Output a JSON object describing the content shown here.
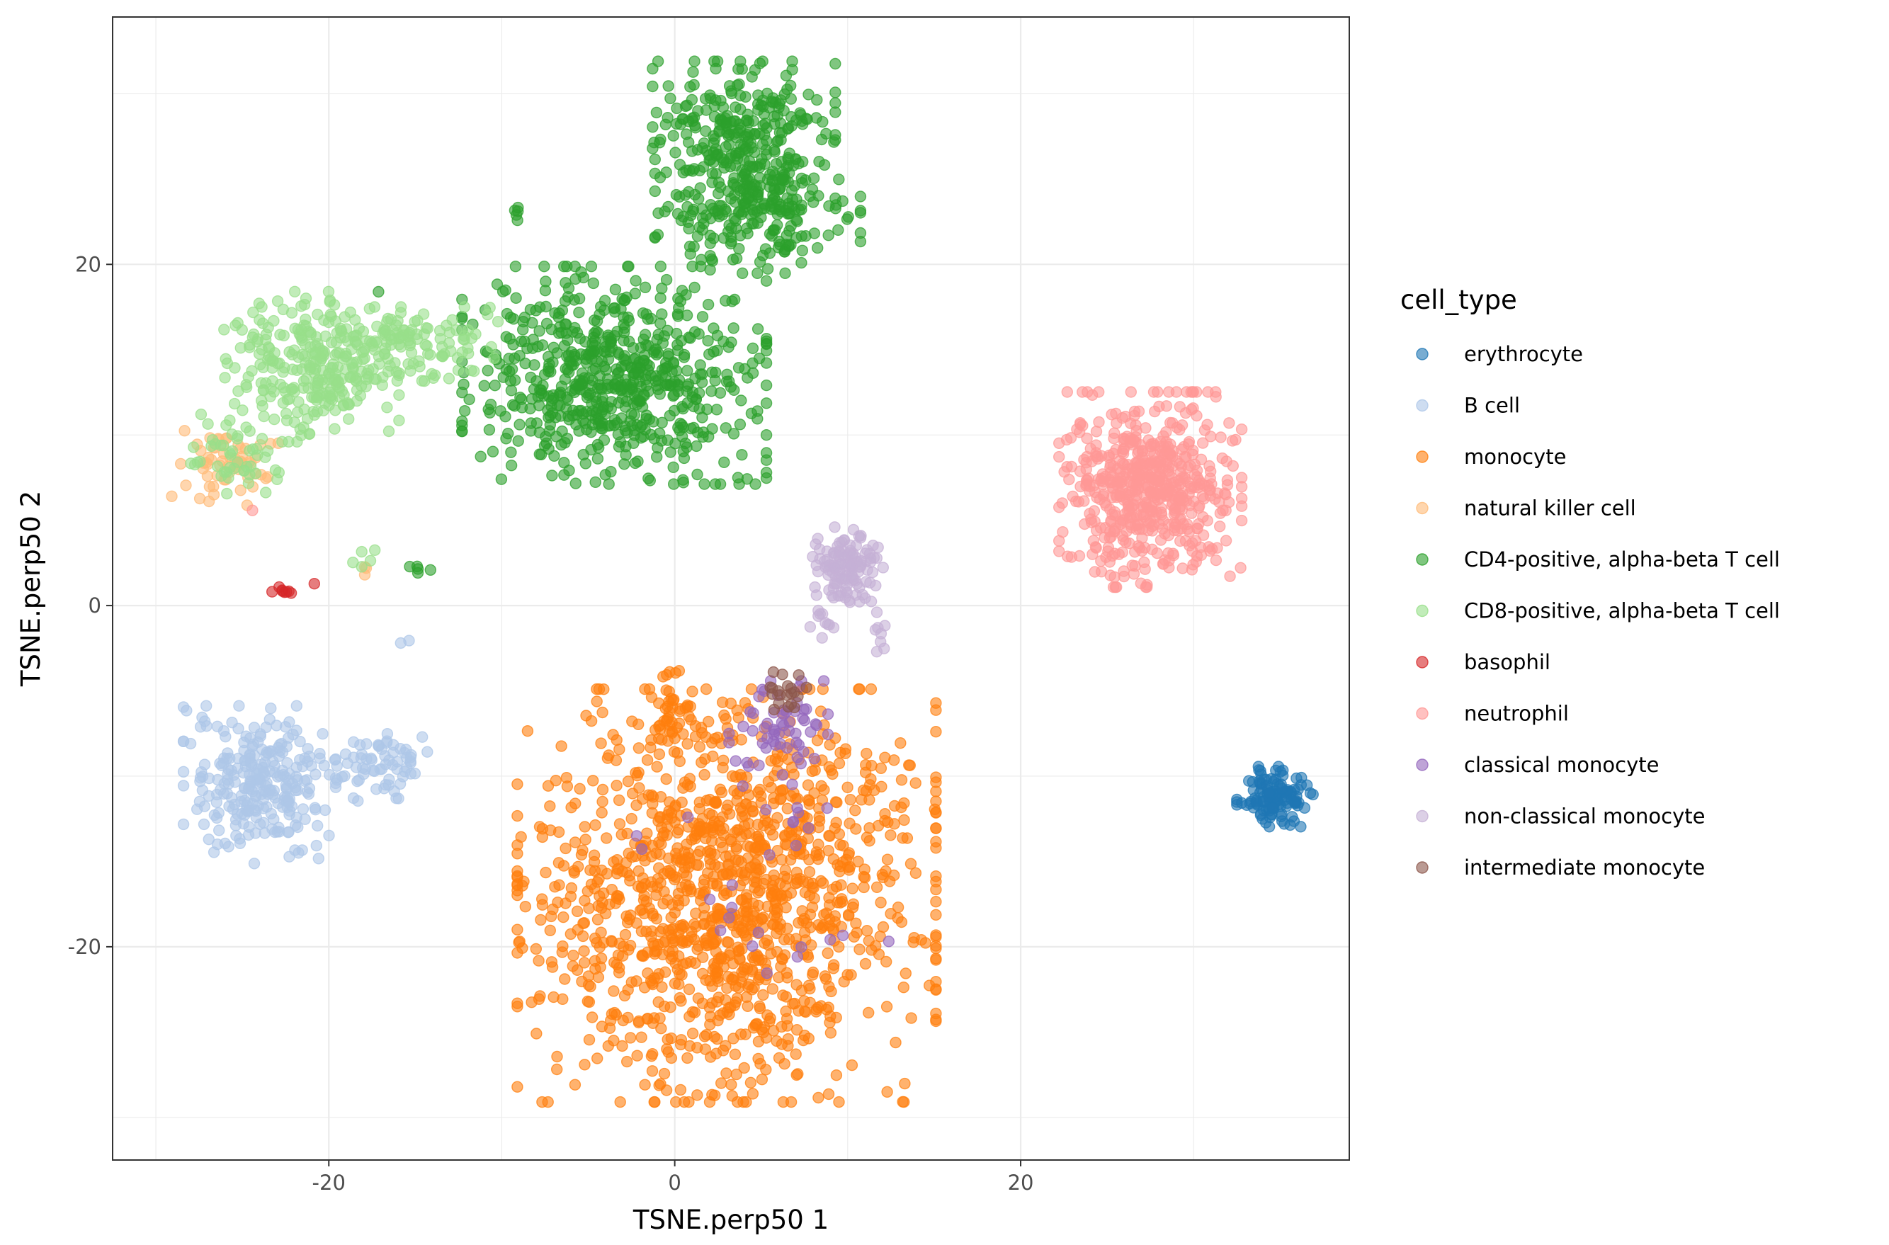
{
  "chart_data": {
    "type": "scatter",
    "title": "",
    "xlabel": "TSNE.perp50 1",
    "ylabel": "TSNE.perp50 2",
    "xlim": [
      -32.5,
      39
    ],
    "ylim": [
      -32.5,
      34.5
    ],
    "x_ticks": [
      -20,
      0,
      20
    ],
    "y_ticks": [
      -20,
      0,
      20
    ],
    "x_tick_labels": [
      "-20",
      "0",
      "20"
    ],
    "y_tick_labels": [
      "-20",
      "0",
      "20"
    ],
    "grid": true,
    "point_alpha": 0.6,
    "legend": {
      "title": "cell_type",
      "position": "right"
    },
    "series": [
      {
        "name": "erythrocyte",
        "color": "#1F77B4",
        "clusters": [
          {
            "cx": 34.7,
            "cy": -11.2,
            "sx": 1.0,
            "sy": 0.8,
            "n": 120
          }
        ]
      },
      {
        "name": "B cell",
        "color": "#AEC7E8",
        "clusters": [
          {
            "cx": -24,
            "cy": -10.5,
            "sx": 2.0,
            "sy": 2.1,
            "n": 260
          },
          {
            "cx": -17,
            "cy": -9.5,
            "sx": 1.6,
            "sy": 0.9,
            "n": 70
          },
          {
            "cx": -15.5,
            "cy": -2.2,
            "sx": 0.2,
            "sy": 0.2,
            "n": 2
          }
        ]
      },
      {
        "name": "monocyte",
        "color": "#FF7F0E",
        "clusters": [
          {
            "cx": 3,
            "cy": -17,
            "sx": 5.5,
            "sy": 5.5,
            "n": 1300
          },
          {
            "cx": -0.5,
            "cy": -6,
            "sx": 0.6,
            "sy": 1.2,
            "n": 40
          }
        ]
      },
      {
        "name": "natural killer cell",
        "color": "#FFBB78",
        "clusters": [
          {
            "cx": -26,
            "cy": 8.3,
            "sx": 1.4,
            "sy": 1.1,
            "n": 60
          },
          {
            "cx": -18.2,
            "cy": 2.1,
            "sx": 0.4,
            "sy": 0.2,
            "n": 3
          }
        ]
      },
      {
        "name": "CD4-positive, alpha-beta T cell",
        "color": "#2CA02C",
        "clusters": [
          {
            "cx": -3.5,
            "cy": 13.5,
            "sx": 4.0,
            "sy": 2.9,
            "n": 650
          },
          {
            "cx": 4,
            "cy": 27.5,
            "sx": 2.4,
            "sy": 2.0,
            "n": 260
          },
          {
            "cx": 4.8,
            "cy": 23,
            "sx": 2.7,
            "sy": 1.6,
            "n": 230
          },
          {
            "cx": -9,
            "cy": 23.0,
            "sx": 0.25,
            "sy": 0.3,
            "n": 5
          },
          {
            "cx": -15,
            "cy": 2.2,
            "sx": 0.4,
            "sy": 0.2,
            "n": 5
          },
          {
            "cx": -17.2,
            "cy": 18.5,
            "sx": 0.1,
            "sy": 0.1,
            "n": 1
          }
        ]
      },
      {
        "name": "CD8-positive, alpha-beta T cell",
        "color": "#98DF8A",
        "clusters": [
          {
            "cx": -21,
            "cy": 14,
            "sx": 2.3,
            "sy": 2.0,
            "n": 260
          },
          {
            "cx": -15.5,
            "cy": 15.3,
            "sx": 2.4,
            "sy": 1.0,
            "n": 130
          },
          {
            "cx": -25.5,
            "cy": 9.0,
            "sx": 1.4,
            "sy": 1.2,
            "n": 50
          },
          {
            "cx": -18,
            "cy": 2.6,
            "sx": 0.3,
            "sy": 0.4,
            "n": 5
          }
        ]
      },
      {
        "name": "basophil",
        "color": "#D62728",
        "clusters": [
          {
            "cx": -22.8,
            "cy": 0.8,
            "sx": 0.35,
            "sy": 0.15,
            "n": 8
          },
          {
            "cx": -21,
            "cy": 1.2,
            "sx": 0.1,
            "sy": 0.1,
            "n": 1
          }
        ]
      },
      {
        "name": "neutrophil",
        "color": "#FF9896",
        "clusters": [
          {
            "cx": 27.5,
            "cy": 6.8,
            "sx": 2.4,
            "sy": 2.6,
            "n": 560
          },
          {
            "cx": -24.5,
            "cy": 5.5,
            "sx": 0.1,
            "sy": 0.1,
            "n": 1
          }
        ]
      },
      {
        "name": "classical monocyte",
        "color": "#9467BD",
        "clusters": [
          {
            "cx": 6.0,
            "cy": -7.5,
            "sx": 1.3,
            "sy": 1.4,
            "n": 60
          },
          {
            "cx": 5.5,
            "cy": -17,
            "sx": 3.5,
            "sy": 4.0,
            "n": 25
          }
        ]
      },
      {
        "name": "non-classical monocyte",
        "color": "#C5B0D5",
        "clusters": [
          {
            "cx": 10,
            "cy": 2.4,
            "sx": 1.0,
            "sy": 1.0,
            "n": 120
          },
          {
            "cx": 8.5,
            "cy": -0.8,
            "sx": 0.4,
            "sy": 0.5,
            "n": 10
          },
          {
            "cx": 11.8,
            "cy": -1.5,
            "sx": 0.2,
            "sy": 0.6,
            "n": 8
          }
        ]
      },
      {
        "name": "intermediate monocyte",
        "color": "#8C564B",
        "clusters": [
          {
            "cx": 6.3,
            "cy": -5.0,
            "sx": 0.7,
            "sy": 0.5,
            "n": 20
          }
        ]
      }
    ]
  }
}
